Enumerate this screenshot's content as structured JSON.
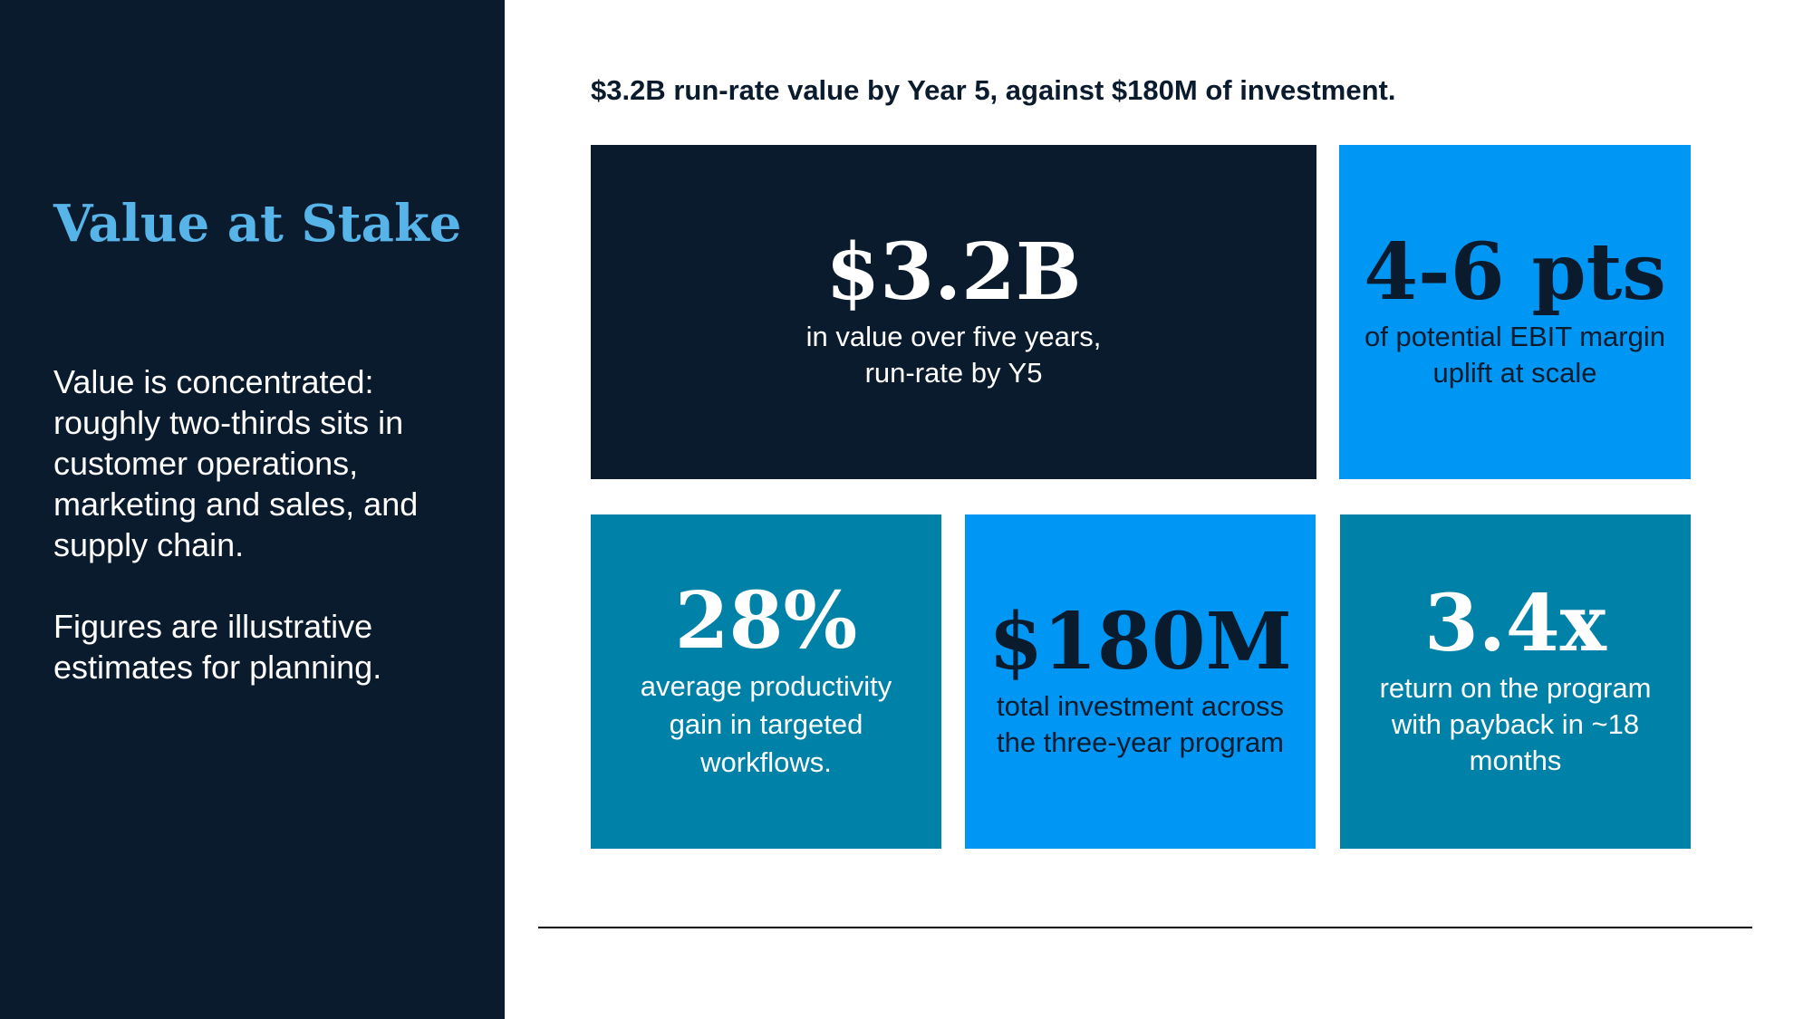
{
  "sidebar": {
    "title": "Value at Stake",
    "paragraphs": [
      "Value is concentrated: roughly two-thirds sits in customer operations, marketing and sales, and supply chain.",
      "Figures are illustrative estimates for planning."
    ]
  },
  "headline": "$3.2B run-rate value by Year 5, against $180M of investment.",
  "tiles": [
    {
      "value": "$3.2B",
      "description": "in value over five years, run-rate by Y5",
      "color": "#0b1b2e"
    },
    {
      "value": "4-6 pts",
      "description": "of potential EBIT margin uplift at scale",
      "color": "#0097f4"
    },
    {
      "value": "28%",
      "description": "average productivity gain in targeted workflows.",
      "color": "#0081a7"
    },
    {
      "value": "$180M",
      "description": "total investment across the three-year program",
      "color": "#0097f4"
    },
    {
      "value": "3.4x",
      "description": "return on the program with payback in ~18 months",
      "color": "#0081a7"
    }
  ],
  "colors": {
    "navy": "#0b1b2e",
    "title_blue": "#56b4e9",
    "bright_blue": "#0097f4",
    "teal": "#0081a7"
  }
}
